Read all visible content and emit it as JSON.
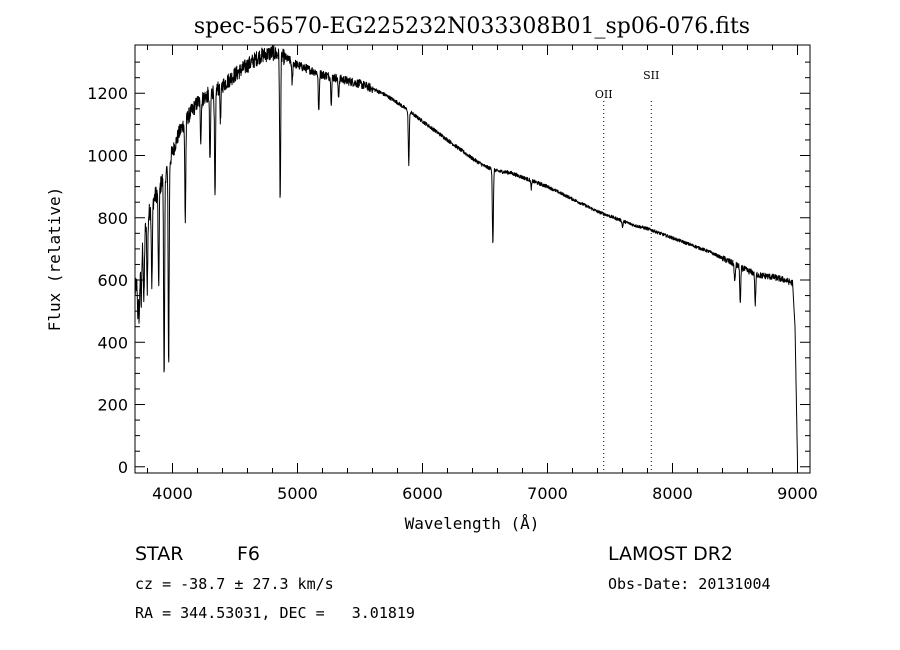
{
  "chart_data": {
    "type": "line",
    "title": "spec-56570-EG225232N033308B01_sp06-076.fits",
    "xlabel": "Wavelength (Å)",
    "ylabel": "Flux (relative)",
    "xlim": [
      3700,
      9100
    ],
    "ylim": [
      -20,
      1355
    ],
    "xticks": [
      4000,
      5000,
      6000,
      7000,
      8000,
      9000
    ],
    "yticks": [
      0,
      200,
      400,
      600,
      800,
      1000,
      1200
    ],
    "grid": false,
    "line_color": "#000000",
    "continuum": {
      "x": [
        3700,
        3750,
        3800,
        3850,
        3900,
        3950,
        4000,
        4050,
        4100,
        4200,
        4300,
        4400,
        4500,
        4600,
        4700,
        4800,
        4900,
        5000,
        5100,
        5200,
        5300,
        5400,
        5500,
        5600,
        5700,
        5800,
        5900,
        6000,
        6100,
        6200,
        6300,
        6400,
        6500,
        6600,
        6700,
        6800,
        6900,
        7000,
        7100,
        7200,
        7300,
        7400,
        7500,
        7600,
        7700,
        7800,
        7900,
        8000,
        8100,
        8200,
        8300,
        8400,
        8500,
        8600,
        8700,
        8800,
        8900,
        8960,
        8980,
        9000
      ],
      "y": [
        560,
        690,
        800,
        860,
        900,
        950,
        1010,
        1070,
        1110,
        1170,
        1200,
        1225,
        1260,
        1290,
        1320,
        1330,
        1315,
        1290,
        1275,
        1260,
        1250,
        1240,
        1230,
        1215,
        1195,
        1170,
        1140,
        1110,
        1080,
        1050,
        1020,
        990,
        965,
        950,
        945,
        930,
        915,
        900,
        880,
        860,
        840,
        820,
        805,
        790,
        775,
        765,
        750,
        735,
        720,
        705,
        690,
        670,
        650,
        630,
        615,
        610,
        600,
        590,
        450,
        10
      ]
    },
    "absorption_lines": [
      {
        "x": 3722,
        "depth": 130
      },
      {
        "x": 3734,
        "depth": 180
      },
      {
        "x": 3750,
        "depth": 170
      },
      {
        "x": 3771,
        "depth": 210
      },
      {
        "x": 3798,
        "depth": 220
      },
      {
        "x": 3835,
        "depth": 260
      },
      {
        "x": 3889,
        "depth": 320
      },
      {
        "x": 3933,
        "depth": 660
      },
      {
        "x": 3969,
        "depth": 640
      },
      {
        "x": 4102,
        "depth": 320
      },
      {
        "x": 4226,
        "depth": 120
      },
      {
        "x": 4300,
        "depth": 230
      },
      {
        "x": 4340,
        "depth": 360
      },
      {
        "x": 4384,
        "depth": 110
      },
      {
        "x": 4861,
        "depth": 470
      },
      {
        "x": 4957,
        "depth": 70
      },
      {
        "x": 5170,
        "depth": 130
      },
      {
        "x": 5270,
        "depth": 80
      },
      {
        "x": 5328,
        "depth": 60
      },
      {
        "x": 5890,
        "depth": 170
      },
      {
        "x": 6563,
        "depth": 240
      },
      {
        "x": 6870,
        "depth": 25
      },
      {
        "x": 7600,
        "depth": 20
      },
      {
        "x": 8498,
        "depth": 60
      },
      {
        "x": 8542,
        "depth": 120
      },
      {
        "x": 8662,
        "depth": 100
      }
    ],
    "annotations": [
      {
        "label": "OII",
        "x": 7450
      },
      {
        "label": "SII",
        "x": 7830
      }
    ],
    "info": {
      "class_label": "STAR",
      "subclass": "F6",
      "survey": "LAMOST DR2",
      "cz": "cz = -38.7 ± 27.3 km/s",
      "obs_date": "Obs-Date: 20131004",
      "coords": "RA = 344.53031, DEC =   3.01819"
    }
  }
}
